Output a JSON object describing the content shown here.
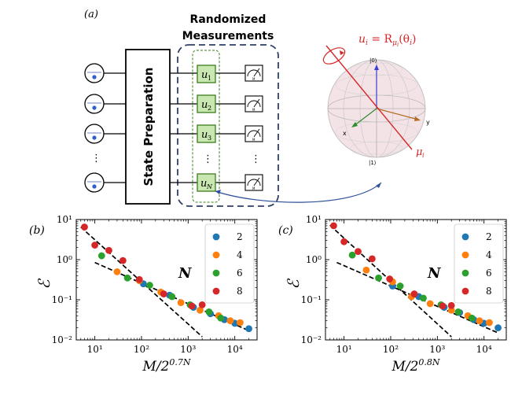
{
  "panel_a": {
    "label": "(a)",
    "state_prep_label": "State Preparation",
    "randomized_title": [
      "Randomized",
      "Measurements"
    ],
    "unitaries": [
      "u",
      "u",
      "u",
      "u"
    ],
    "unitary_subscripts": [
      "1",
      "2",
      "3",
      "N"
    ],
    "meter_sub": "M",
    "dots": "⋮",
    "bloch": {
      "eq_left": "u",
      "eq_sub": "i",
      "eq_mid": " = R",
      "eq_sub2": "μ",
      "eq_sub3": "i",
      "eq_right": "(θ",
      "eq_sub4": "i",
      "eq_end": ")",
      "ket0": "|0⟩",
      "ket1": "|1⟩",
      "x_label": "x",
      "y_label": "y",
      "axis_label": "μ",
      "axis_sub": "i"
    },
    "colors": {
      "box_green": "#c9e7b0",
      "box_green_border": "#3b7d1c",
      "dashed_blue": "#2f3f66",
      "red": "#d62728"
    }
  },
  "chart_data": [
    {
      "type": "scatter",
      "panel_label": "(b)",
      "xlabel_base": "M/2",
      "xlabel_exp": "0.7N",
      "ylabel": "ℰ",
      "xscale": "log",
      "yscale": "log",
      "xlim": [
        4,
        30000
      ],
      "ylim": [
        0.01,
        10
      ],
      "xticks": [
        10,
        100,
        1000,
        10000
      ],
      "xtick_labels": [
        "10¹",
        "10²",
        "10³",
        "10⁴"
      ],
      "yticks": [
        0.01,
        0.1,
        1,
        10
      ],
      "ytick_labels": [
        "10⁻²",
        "10⁻¹",
        "10⁰",
        "10¹"
      ],
      "legend_title": "N",
      "legend_position": "top-right",
      "series": [
        {
          "name": "2",
          "color": "#1f77b4",
          "points": [
            [
              110,
              0.25
            ],
            [
              400,
              0.13
            ],
            [
              1300,
              0.065
            ],
            [
              3000,
              0.045
            ],
            [
              6000,
              0.032
            ],
            [
              10000,
              0.026
            ],
            [
              20000,
              0.019
            ]
          ]
        },
        {
          "name": "4",
          "color": "#ff7f0e",
          "points": [
            [
              30,
              0.5
            ],
            [
              90,
              0.3
            ],
            [
              260,
              0.155
            ],
            [
              700,
              0.085
            ],
            [
              1800,
              0.055
            ],
            [
              4500,
              0.04
            ],
            [
              8000,
              0.03
            ],
            [
              13000,
              0.027
            ]
          ]
        },
        {
          "name": "6",
          "color": "#2ca02c",
          "points": [
            [
              14,
              1.25
            ],
            [
              50,
              0.35
            ],
            [
              150,
              0.23
            ],
            [
              450,
              0.12
            ],
            [
              1100,
              0.075
            ],
            [
              2800,
              0.05
            ],
            [
              5000,
              0.035
            ]
          ]
        },
        {
          "name": "8",
          "color": "#d62728",
          "points": [
            [
              6,
              6.5
            ],
            [
              10,
              2.3
            ],
            [
              20,
              1.7
            ],
            [
              40,
              0.95
            ],
            [
              90,
              0.32
            ],
            [
              300,
              0.14
            ],
            [
              1200,
              0.07
            ],
            [
              2000,
              0.075
            ]
          ]
        }
      ],
      "fit_lines": [
        {
          "from": [
            5,
            6.5
          ],
          "to": [
            2000,
            0.012
          ]
        },
        {
          "from": [
            10,
            0.85
          ],
          "to": [
            18000,
            0.018
          ]
        }
      ]
    },
    {
      "type": "scatter",
      "panel_label": "(c)",
      "xlabel_base": "M/2",
      "xlabel_exp": "0.8N",
      "ylabel": "ℰ",
      "xscale": "log",
      "yscale": "log",
      "xlim": [
        4,
        30000
      ],
      "ylim": [
        0.01,
        10
      ],
      "xticks": [
        10,
        100,
        1000,
        10000
      ],
      "xtick_labels": [
        "10¹",
        "10²",
        "10³",
        "10⁴"
      ],
      "yticks": [
        0.01,
        0.1,
        1,
        10
      ],
      "ytick_labels": [
        "10⁻²",
        "10⁻¹",
        "10⁰",
        "10¹"
      ],
      "legend_title": "N",
      "legend_position": "top-right",
      "series": [
        {
          "name": "2",
          "color": "#1f77b4",
          "points": [
            [
              110,
              0.22
            ],
            [
              400,
              0.12
            ],
            [
              1400,
              0.065
            ],
            [
              3000,
              0.048
            ],
            [
              6000,
              0.032
            ],
            [
              10000,
              0.026
            ],
            [
              20000,
              0.02
            ]
          ]
        },
        {
          "name": "4",
          "color": "#ff7f0e",
          "points": [
            [
              30,
              0.55
            ],
            [
              110,
              0.28
            ],
            [
              280,
              0.12
            ],
            [
              700,
              0.08
            ],
            [
              2000,
              0.055
            ],
            [
              4500,
              0.04
            ],
            [
              8000,
              0.03
            ],
            [
              13000,
              0.027
            ]
          ]
        },
        {
          "name": "6",
          "color": "#2ca02c",
          "points": [
            [
              15,
              1.3
            ],
            [
              55,
              0.35
            ],
            [
              160,
              0.22
            ],
            [
              500,
              0.11
            ],
            [
              1200,
              0.075
            ],
            [
              2800,
              0.05
            ],
            [
              5500,
              0.035
            ]
          ]
        },
        {
          "name": "8",
          "color": "#d62728",
          "points": [
            [
              6,
              7.0
            ],
            [
              10,
              2.8
            ],
            [
              20,
              1.6
            ],
            [
              40,
              1.05
            ],
            [
              95,
              0.33
            ],
            [
              320,
              0.14
            ],
            [
              1300,
              0.07
            ],
            [
              2000,
              0.072
            ]
          ]
        }
      ],
      "fit_lines": [
        {
          "from": [
            5,
            7.2
          ],
          "to": [
            2000,
            0.012
          ]
        },
        {
          "from": [
            7,
            0.85
          ],
          "to": [
            20000,
            0.015
          ]
        }
      ]
    }
  ]
}
